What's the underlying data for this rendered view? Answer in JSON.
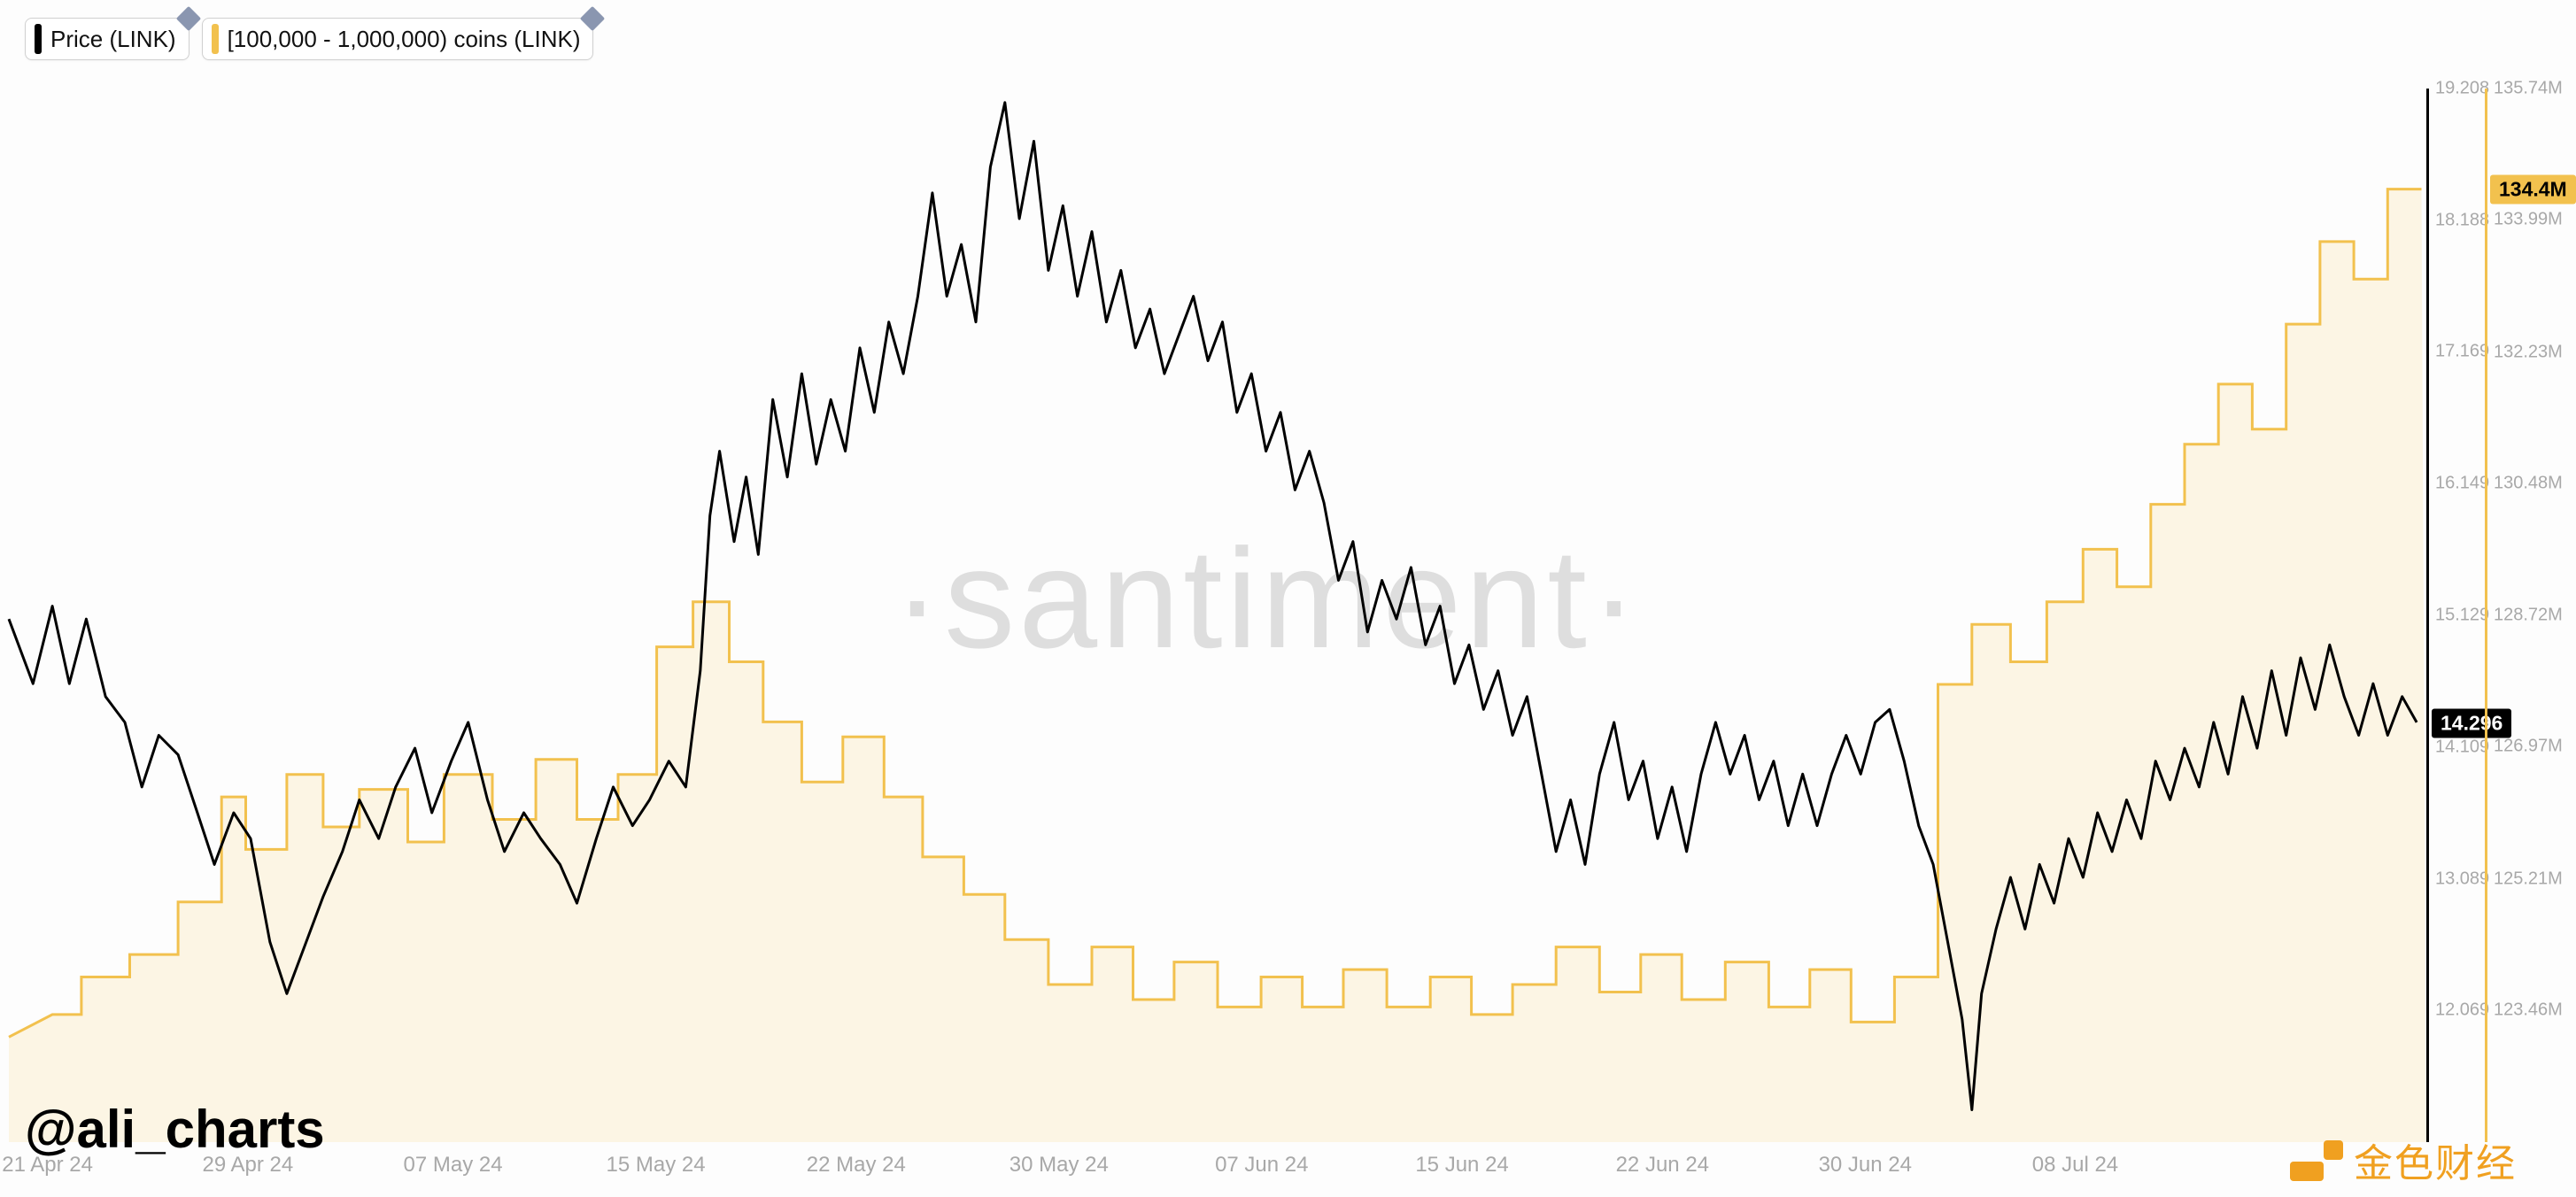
{
  "legend": {
    "series1": {
      "label": "Price (LINK)",
      "marker_color": "#000000"
    },
    "series2": {
      "label": "[100,000 - 1,000,000) coins (LINK)",
      "marker_color": "#f2c14e"
    }
  },
  "watermark": "·santiment·",
  "attribution": "@ali_charts",
  "bottomright_text": "金色财经",
  "chart": {
    "type": "line+area",
    "background_color": "#fdfdfd",
    "x_axis": {
      "ticks": [
        {
          "pos": 0.016,
          "label": "21 Apr 24"
        },
        {
          "pos": 0.099,
          "label": "29 Apr 24"
        },
        {
          "pos": 0.184,
          "label": "07 May 24"
        },
        {
          "pos": 0.268,
          "label": "15 May 24"
        },
        {
          "pos": 0.351,
          "label": "22 May 24"
        },
        {
          "pos": 0.435,
          "label": "30 May 24"
        },
        {
          "pos": 0.519,
          "label": "07 Jun 24"
        },
        {
          "pos": 0.602,
          "label": "15 Jun 24"
        },
        {
          "pos": 0.685,
          "label": "22 Jun 24"
        },
        {
          "pos": 0.769,
          "label": "30 Jun 24"
        },
        {
          "pos": 0.856,
          "label": "08 Jul 24"
        }
      ]
    },
    "y_price": {
      "color": "#000000",
      "min": 11.05,
      "max": 19.208,
      "current": 14.296,
      "line_width": 3,
      "ticks": [
        19.208,
        18.188,
        17.169,
        16.149,
        15.129,
        14.109,
        13.089,
        12.069
      ],
      "axis_line_color": "#000000"
    },
    "y_coins": {
      "color": "#f2c14e",
      "fill_color": "#fcefd0",
      "fill_opacity": 0.55,
      "min": 121.7,
      "max": 135.74,
      "current": 134.4,
      "line_width": 3,
      "ticks": [
        {
          "v": 135.74,
          "label": "135.74M"
        },
        {
          "v": 133.99,
          "label": "133.99M"
        },
        {
          "v": 132.23,
          "label": "132.23M"
        },
        {
          "v": 130.48,
          "label": "130.48M"
        },
        {
          "v": 128.72,
          "label": "128.72M"
        },
        {
          "v": 126.97,
          "label": "126.97M"
        },
        {
          "v": 125.21,
          "label": "125.21M"
        },
        {
          "v": 123.46,
          "label": "123.46M"
        }
      ],
      "axis_line_color": "#f2c14e",
      "current_label": "134.4M"
    },
    "price_series": [
      [
        0.0,
        15.1
      ],
      [
        0.01,
        14.6
      ],
      [
        0.018,
        15.2
      ],
      [
        0.025,
        14.6
      ],
      [
        0.032,
        15.1
      ],
      [
        0.04,
        14.5
      ],
      [
        0.048,
        14.3
      ],
      [
        0.055,
        13.8
      ],
      [
        0.062,
        14.2
      ],
      [
        0.07,
        14.05
      ],
      [
        0.078,
        13.6
      ],
      [
        0.085,
        13.2
      ],
      [
        0.093,
        13.6
      ],
      [
        0.1,
        13.4
      ],
      [
        0.108,
        12.6
      ],
      [
        0.115,
        12.2
      ],
      [
        0.123,
        12.6
      ],
      [
        0.13,
        12.95
      ],
      [
        0.138,
        13.3
      ],
      [
        0.145,
        13.7
      ],
      [
        0.153,
        13.4
      ],
      [
        0.16,
        13.8
      ],
      [
        0.168,
        14.1
      ],
      [
        0.175,
        13.6
      ],
      [
        0.183,
        14.0
      ],
      [
        0.19,
        14.3
      ],
      [
        0.198,
        13.7
      ],
      [
        0.205,
        13.3
      ],
      [
        0.213,
        13.6
      ],
      [
        0.22,
        13.4
      ],
      [
        0.228,
        13.2
      ],
      [
        0.235,
        12.9
      ],
      [
        0.243,
        13.4
      ],
      [
        0.25,
        13.8
      ],
      [
        0.258,
        13.5
      ],
      [
        0.265,
        13.7
      ],
      [
        0.273,
        14.0
      ],
      [
        0.28,
        13.8
      ],
      [
        0.286,
        14.7
      ],
      [
        0.29,
        15.9
      ],
      [
        0.294,
        16.4
      ],
      [
        0.3,
        15.7
      ],
      [
        0.305,
        16.2
      ],
      [
        0.31,
        15.6
      ],
      [
        0.316,
        16.8
      ],
      [
        0.322,
        16.2
      ],
      [
        0.328,
        17.0
      ],
      [
        0.334,
        16.3
      ],
      [
        0.34,
        16.8
      ],
      [
        0.346,
        16.4
      ],
      [
        0.352,
        17.2
      ],
      [
        0.358,
        16.7
      ],
      [
        0.364,
        17.4
      ],
      [
        0.37,
        17.0
      ],
      [
        0.376,
        17.6
      ],
      [
        0.382,
        18.4
      ],
      [
        0.388,
        17.6
      ],
      [
        0.394,
        18.0
      ],
      [
        0.4,
        17.4
      ],
      [
        0.406,
        18.6
      ],
      [
        0.412,
        19.1
      ],
      [
        0.418,
        18.2
      ],
      [
        0.424,
        18.8
      ],
      [
        0.43,
        17.8
      ],
      [
        0.436,
        18.3
      ],
      [
        0.442,
        17.6
      ],
      [
        0.448,
        18.1
      ],
      [
        0.454,
        17.4
      ],
      [
        0.46,
        17.8
      ],
      [
        0.466,
        17.2
      ],
      [
        0.472,
        17.5
      ],
      [
        0.478,
        17.0
      ],
      [
        0.484,
        17.3
      ],
      [
        0.49,
        17.6
      ],
      [
        0.496,
        17.1
      ],
      [
        0.502,
        17.4
      ],
      [
        0.508,
        16.7
      ],
      [
        0.514,
        17.0
      ],
      [
        0.52,
        16.4
      ],
      [
        0.526,
        16.7
      ],
      [
        0.532,
        16.1
      ],
      [
        0.538,
        16.4
      ],
      [
        0.544,
        16.0
      ],
      [
        0.55,
        15.4
      ],
      [
        0.556,
        15.7
      ],
      [
        0.562,
        15.0
      ],
      [
        0.568,
        15.4
      ],
      [
        0.574,
        15.1
      ],
      [
        0.58,
        15.5
      ],
      [
        0.586,
        14.9
      ],
      [
        0.592,
        15.2
      ],
      [
        0.598,
        14.6
      ],
      [
        0.604,
        14.9
      ],
      [
        0.61,
        14.4
      ],
      [
        0.616,
        14.7
      ],
      [
        0.622,
        14.2
      ],
      [
        0.628,
        14.5
      ],
      [
        0.634,
        13.9
      ],
      [
        0.64,
        13.3
      ],
      [
        0.646,
        13.7
      ],
      [
        0.652,
        13.2
      ],
      [
        0.658,
        13.9
      ],
      [
        0.664,
        14.3
      ],
      [
        0.67,
        13.7
      ],
      [
        0.676,
        14.0
      ],
      [
        0.682,
        13.4
      ],
      [
        0.688,
        13.8
      ],
      [
        0.694,
        13.3
      ],
      [
        0.7,
        13.9
      ],
      [
        0.706,
        14.3
      ],
      [
        0.712,
        13.9
      ],
      [
        0.718,
        14.2
      ],
      [
        0.724,
        13.7
      ],
      [
        0.73,
        14.0
      ],
      [
        0.736,
        13.5
      ],
      [
        0.742,
        13.9
      ],
      [
        0.748,
        13.5
      ],
      [
        0.754,
        13.9
      ],
      [
        0.76,
        14.2
      ],
      [
        0.766,
        13.9
      ],
      [
        0.772,
        14.3
      ],
      [
        0.778,
        14.4
      ],
      [
        0.784,
        14.0
      ],
      [
        0.79,
        13.5
      ],
      [
        0.796,
        13.2
      ],
      [
        0.802,
        12.6
      ],
      [
        0.808,
        12.0
      ],
      [
        0.812,
        11.3
      ],
      [
        0.816,
        12.2
      ],
      [
        0.822,
        12.7
      ],
      [
        0.828,
        13.1
      ],
      [
        0.834,
        12.7
      ],
      [
        0.84,
        13.2
      ],
      [
        0.846,
        12.9
      ],
      [
        0.852,
        13.4
      ],
      [
        0.858,
        13.1
      ],
      [
        0.864,
        13.6
      ],
      [
        0.87,
        13.3
      ],
      [
        0.876,
        13.7
      ],
      [
        0.882,
        13.4
      ],
      [
        0.888,
        14.0
      ],
      [
        0.894,
        13.7
      ],
      [
        0.9,
        14.1
      ],
      [
        0.906,
        13.8
      ],
      [
        0.912,
        14.3
      ],
      [
        0.918,
        13.9
      ],
      [
        0.924,
        14.5
      ],
      [
        0.93,
        14.1
      ],
      [
        0.936,
        14.7
      ],
      [
        0.942,
        14.2
      ],
      [
        0.948,
        14.8
      ],
      [
        0.954,
        14.4
      ],
      [
        0.96,
        14.9
      ],
      [
        0.966,
        14.5
      ],
      [
        0.972,
        14.2
      ],
      [
        0.978,
        14.6
      ],
      [
        0.984,
        14.2
      ],
      [
        0.99,
        14.5
      ],
      [
        0.996,
        14.3
      ]
    ],
    "coins_series": [
      [
        0.0,
        123.1
      ],
      [
        0.018,
        123.4
      ],
      [
        0.03,
        123.4
      ],
      [
        0.03,
        123.9
      ],
      [
        0.05,
        123.9
      ],
      [
        0.05,
        124.2
      ],
      [
        0.07,
        124.2
      ],
      [
        0.07,
        124.9
      ],
      [
        0.088,
        124.9
      ],
      [
        0.088,
        126.3
      ],
      [
        0.098,
        126.3
      ],
      [
        0.098,
        125.6
      ],
      [
        0.115,
        125.6
      ],
      [
        0.115,
        126.6
      ],
      [
        0.13,
        126.6
      ],
      [
        0.13,
        125.9
      ],
      [
        0.145,
        125.9
      ],
      [
        0.145,
        126.4
      ],
      [
        0.165,
        126.4
      ],
      [
        0.165,
        125.7
      ],
      [
        0.18,
        125.7
      ],
      [
        0.18,
        126.6
      ],
      [
        0.2,
        126.6
      ],
      [
        0.2,
        126.0
      ],
      [
        0.218,
        126.0
      ],
      [
        0.218,
        126.8
      ],
      [
        0.235,
        126.8
      ],
      [
        0.235,
        126.0
      ],
      [
        0.252,
        126.0
      ],
      [
        0.252,
        126.6
      ],
      [
        0.268,
        126.6
      ],
      [
        0.268,
        128.3
      ],
      [
        0.283,
        128.3
      ],
      [
        0.283,
        128.9
      ],
      [
        0.298,
        128.9
      ],
      [
        0.298,
        128.1
      ],
      [
        0.312,
        128.1
      ],
      [
        0.312,
        127.3
      ],
      [
        0.328,
        127.3
      ],
      [
        0.328,
        126.5
      ],
      [
        0.345,
        126.5
      ],
      [
        0.345,
        127.1
      ],
      [
        0.362,
        127.1
      ],
      [
        0.362,
        126.3
      ],
      [
        0.378,
        126.3
      ],
      [
        0.378,
        125.5
      ],
      [
        0.395,
        125.5
      ],
      [
        0.395,
        125.0
      ],
      [
        0.412,
        125.0
      ],
      [
        0.412,
        124.4
      ],
      [
        0.43,
        124.4
      ],
      [
        0.43,
        123.8
      ],
      [
        0.448,
        123.8
      ],
      [
        0.448,
        124.3
      ],
      [
        0.465,
        124.3
      ],
      [
        0.465,
        123.6
      ],
      [
        0.482,
        123.6
      ],
      [
        0.482,
        124.1
      ],
      [
        0.5,
        124.1
      ],
      [
        0.5,
        123.5
      ],
      [
        0.518,
        123.5
      ],
      [
        0.518,
        123.9
      ],
      [
        0.535,
        123.9
      ],
      [
        0.535,
        123.5
      ],
      [
        0.552,
        123.5
      ],
      [
        0.552,
        124.0
      ],
      [
        0.57,
        124.0
      ],
      [
        0.57,
        123.5
      ],
      [
        0.588,
        123.5
      ],
      [
        0.588,
        123.9
      ],
      [
        0.605,
        123.9
      ],
      [
        0.605,
        123.4
      ],
      [
        0.622,
        123.4
      ],
      [
        0.622,
        123.8
      ],
      [
        0.64,
        123.8
      ],
      [
        0.64,
        124.3
      ],
      [
        0.658,
        124.3
      ],
      [
        0.658,
        123.7
      ],
      [
        0.675,
        123.7
      ],
      [
        0.675,
        124.2
      ],
      [
        0.692,
        124.2
      ],
      [
        0.692,
        123.6
      ],
      [
        0.71,
        123.6
      ],
      [
        0.71,
        124.1
      ],
      [
        0.728,
        124.1
      ],
      [
        0.728,
        123.5
      ],
      [
        0.745,
        123.5
      ],
      [
        0.745,
        124.0
      ],
      [
        0.762,
        124.0
      ],
      [
        0.762,
        123.3
      ],
      [
        0.78,
        123.3
      ],
      [
        0.78,
        123.9
      ],
      [
        0.798,
        123.9
      ],
      [
        0.798,
        127.8
      ],
      [
        0.812,
        127.8
      ],
      [
        0.812,
        128.6
      ],
      [
        0.828,
        128.6
      ],
      [
        0.828,
        128.1
      ],
      [
        0.843,
        128.1
      ],
      [
        0.843,
        128.9
      ],
      [
        0.858,
        128.9
      ],
      [
        0.858,
        129.6
      ],
      [
        0.872,
        129.6
      ],
      [
        0.872,
        129.1
      ],
      [
        0.886,
        129.1
      ],
      [
        0.886,
        130.2
      ],
      [
        0.9,
        130.2
      ],
      [
        0.9,
        131.0
      ],
      [
        0.914,
        131.0
      ],
      [
        0.914,
        131.8
      ],
      [
        0.928,
        131.8
      ],
      [
        0.928,
        131.2
      ],
      [
        0.942,
        131.2
      ],
      [
        0.942,
        132.6
      ],
      [
        0.956,
        132.6
      ],
      [
        0.956,
        133.7
      ],
      [
        0.97,
        133.7
      ],
      [
        0.97,
        133.2
      ],
      [
        0.984,
        133.2
      ],
      [
        0.984,
        134.4
      ],
      [
        0.998,
        134.4
      ]
    ]
  }
}
